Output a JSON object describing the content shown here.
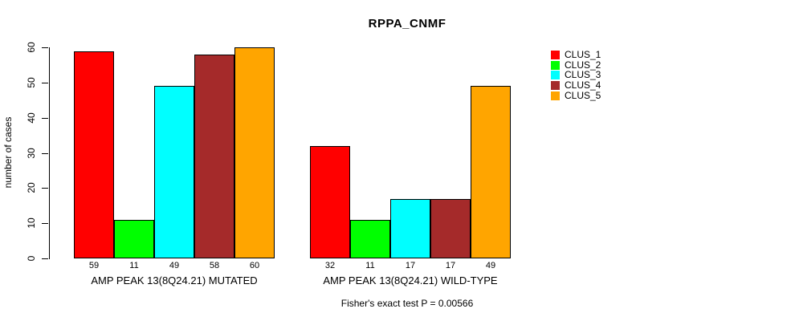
{
  "title": "RPPA_CNMF",
  "chart_data": {
    "type": "bar",
    "title": "RPPA_CNMF",
    "ylabel": "number of cases",
    "xlabel": "",
    "ylim": [
      0,
      60
    ],
    "yticks": [
      0,
      10,
      20,
      30,
      40,
      50,
      60
    ],
    "grid": false,
    "legend_position": "right",
    "categories": [
      "AMP PEAK 13(8Q24.21) MUTATED",
      "AMP PEAK 13(8Q24.21) WILD-TYPE"
    ],
    "series": [
      {
        "name": "CLUS_1",
        "color": "#FF0000",
        "values": [
          59,
          32
        ]
      },
      {
        "name": "CLUS_2",
        "color": "#00FF00",
        "values": [
          11,
          11
        ]
      },
      {
        "name": "CLUS_3",
        "color": "#00FFFF",
        "values": [
          49,
          17
        ]
      },
      {
        "name": "CLUS_4",
        "color": "#A52A2A",
        "values": [
          58,
          17
        ]
      },
      {
        "name": "CLUS_5",
        "color": "#FFA500",
        "values": [
          60,
          49
        ]
      }
    ],
    "bar_value_labels": [
      [
        59,
        11,
        49,
        58,
        60
      ],
      [
        32,
        11,
        17,
        17,
        49
      ]
    ],
    "annotation": "Fisher's exact test P = 0.00566",
    "axis_color": "#000000",
    "bar_border_color": "#000000",
    "background_color": "#FFFFFF"
  }
}
